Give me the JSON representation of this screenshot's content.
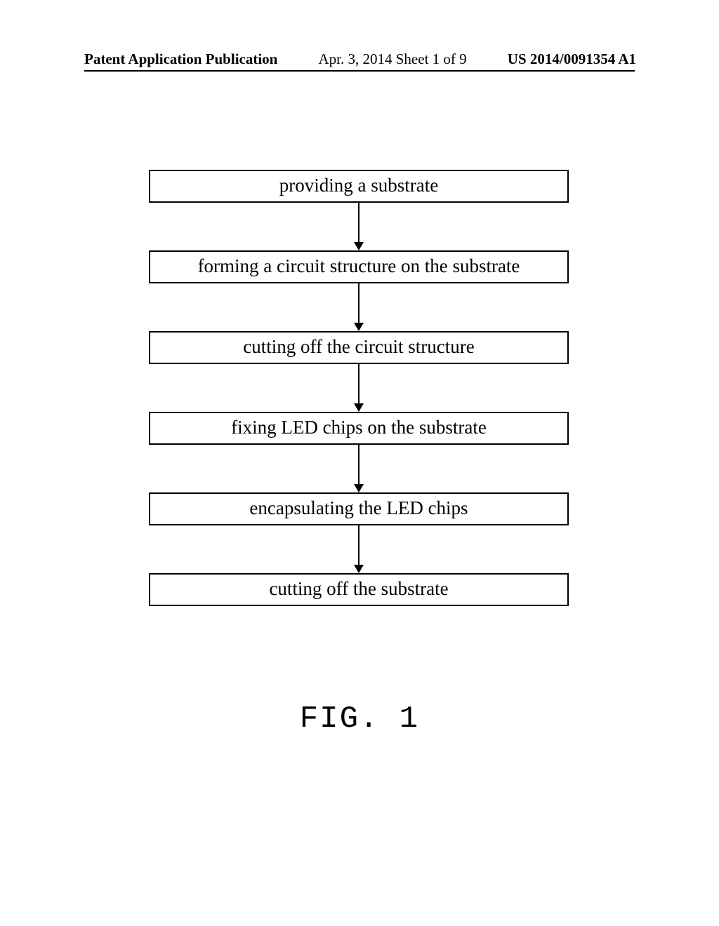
{
  "header": {
    "left": "Patent Application Publication",
    "center": "Apr. 3, 2014  Sheet 1 of 9",
    "right": "US 2014/0091354 A1"
  },
  "flowchart": {
    "type": "flowchart",
    "box_border_color": "#000000",
    "box_background": "#ffffff",
    "box_font_size": 27,
    "arrow_color": "#000000",
    "arrow_height": 68,
    "steps": [
      "providing a substrate",
      "forming a circuit structure on the substrate",
      "cutting off the circuit structure",
      "fixing LED chips on the substrate",
      "encapsulating the LED chips",
      "cutting off the substrate"
    ]
  },
  "figure_label": "FIG. 1"
}
